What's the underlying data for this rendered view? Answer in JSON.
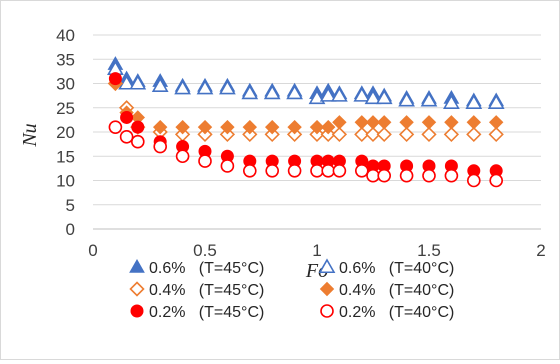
{
  "chart_data": {
    "type": "scatter",
    "title": "",
    "xlabel": "Fo",
    "ylabel": "Nu",
    "xlim": [
      0,
      2
    ],
    "ylim": [
      0,
      40
    ],
    "xticks": [
      "0",
      "0.5",
      "1",
      "1.5",
      "2"
    ],
    "yticks": [
      "0",
      "5",
      "10",
      "15",
      "20",
      "25",
      "30",
      "35",
      "40"
    ],
    "grid": "horizontal",
    "legend_position": "bottom",
    "series": [
      {
        "name": "0.6%   (T=45°C)",
        "marker": "triangle-filled",
        "color": "#4472C4",
        "x": [
          0.1,
          0.15,
          0.2,
          0.3,
          0.4,
          0.5,
          0.6,
          0.7,
          0.8,
          0.9,
          1.0,
          1.05,
          1.1,
          1.2,
          1.25,
          1.3,
          1.4,
          1.5,
          1.6,
          1.7,
          1.8
        ],
        "y": [
          34,
          31,
          30.5,
          30.5,
          29.5,
          29.5,
          29.5,
          28.5,
          28.5,
          28.5,
          28,
          28.5,
          28,
          28,
          28,
          27.5,
          27,
          27,
          27,
          26.5,
          26.5
        ]
      },
      {
        "name": "0.6%   (T=40°C)",
        "marker": "triangle-open",
        "color": "#4472C4",
        "x": [
          0.1,
          0.15,
          0.2,
          0.3,
          0.4,
          0.5,
          0.6,
          0.7,
          0.8,
          0.9,
          1.0,
          1.05,
          1.1,
          1.2,
          1.25,
          1.3,
          1.4,
          1.5,
          1.6,
          1.7,
          1.8
        ],
        "y": [
          33,
          30,
          30,
          29.5,
          29,
          29,
          29,
          28,
          28,
          28,
          27,
          27.5,
          27.5,
          27.5,
          27,
          27,
          26.5,
          26.5,
          26,
          26,
          26
        ]
      },
      {
        "name": "0.4%   (T=45°C)",
        "marker": "diamond-open",
        "color": "#ED7D31",
        "x": [
          0.1,
          0.15,
          0.2,
          0.3,
          0.4,
          0.5,
          0.6,
          0.7,
          0.8,
          0.9,
          1.0,
          1.05,
          1.1,
          1.2,
          1.25,
          1.3,
          1.4,
          1.5,
          1.6,
          1.7,
          1.8
        ],
        "y": [
          30,
          25,
          21,
          20,
          19.5,
          19.5,
          19.5,
          19.5,
          19.5,
          19.5,
          19.5,
          19.5,
          19.5,
          19.5,
          19.5,
          19.5,
          19.5,
          19.5,
          19.5,
          19.5,
          19.5
        ]
      },
      {
        "name": "0.4%   (T=40°C)",
        "marker": "diamond-filled",
        "color": "#ED7D31",
        "x": [
          0.1,
          0.15,
          0.2,
          0.3,
          0.4,
          0.5,
          0.6,
          0.7,
          0.8,
          0.9,
          1.0,
          1.05,
          1.1,
          1.2,
          1.25,
          1.3,
          1.4,
          1.5,
          1.6,
          1.7,
          1.8
        ],
        "y": [
          30,
          24,
          23,
          21,
          21,
          21,
          21,
          21,
          21,
          21,
          21,
          21,
          22,
          22,
          22,
          22,
          22,
          22,
          22,
          22,
          22
        ]
      },
      {
        "name": "0.2%   (T=45°C)",
        "marker": "circle-filled",
        "color": "#FF0000",
        "x": [
          0.1,
          0.15,
          0.2,
          0.3,
          0.4,
          0.5,
          0.6,
          0.7,
          0.8,
          0.9,
          1.0,
          1.05,
          1.1,
          1.2,
          1.25,
          1.3,
          1.4,
          1.5,
          1.6,
          1.7,
          1.8
        ],
        "y": [
          31,
          23,
          21,
          18,
          17,
          16,
          15,
          14,
          14,
          14,
          14,
          14,
          14,
          14,
          13,
          13,
          13,
          13,
          13,
          12,
          12
        ]
      },
      {
        "name": "0.2%   (T=40°C)",
        "marker": "circle-open",
        "color": "#FF0000",
        "x": [
          0.1,
          0.15,
          0.2,
          0.3,
          0.4,
          0.5,
          0.6,
          0.7,
          0.8,
          0.9,
          1.0,
          1.05,
          1.1,
          1.2,
          1.25,
          1.3,
          1.4,
          1.5,
          1.6,
          1.7,
          1.8
        ],
        "y": [
          21,
          19,
          18,
          17,
          15,
          14,
          13,
          12,
          12,
          12,
          12,
          12,
          12,
          12,
          11,
          11,
          11,
          11,
          11,
          10,
          10
        ]
      }
    ]
  }
}
